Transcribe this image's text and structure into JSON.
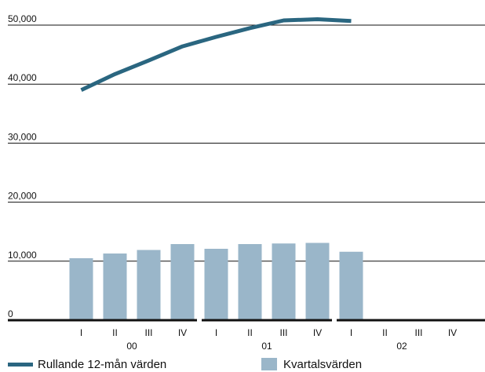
{
  "chart_data": {
    "type": "bar+line",
    "y_ticks": [
      "50,000",
      "40,000",
      "30,000",
      "20,000",
      "10,000",
      "0"
    ],
    "y_tick_values": [
      50000,
      40000,
      30000,
      20000,
      10000,
      0
    ],
    "ylim": [
      0,
      52000
    ],
    "grid": true,
    "categories": [
      "I",
      "II",
      "III",
      "IV",
      "I",
      "II",
      "III",
      "IV",
      "I",
      "II",
      "III",
      "IV"
    ],
    "year_groups": [
      {
        "label": "00",
        "categories": [
          "I",
          "II",
          "III",
          "IV"
        ]
      },
      {
        "label": "01",
        "categories": [
          "I",
          "II",
          "III",
          "IV"
        ]
      },
      {
        "label": "02",
        "categories": [
          "I",
          "II",
          "III",
          "IV"
        ]
      }
    ],
    "series": [
      {
        "name": "Kvartalsvärden",
        "type": "bar",
        "color": "#9ab6c9",
        "values": [
          10500,
          11300,
          11900,
          12900,
          12100,
          12900,
          13000,
          13100,
          11600,
          null,
          null,
          null
        ]
      },
      {
        "name": "Rullande 12-mån värden",
        "type": "line",
        "color": "#2a6680",
        "values": [
          39000,
          41700,
          44000,
          46400,
          48000,
          49500,
          50800,
          51000,
          50700,
          null,
          null,
          null
        ]
      }
    ],
    "legend_position": "bottom"
  }
}
